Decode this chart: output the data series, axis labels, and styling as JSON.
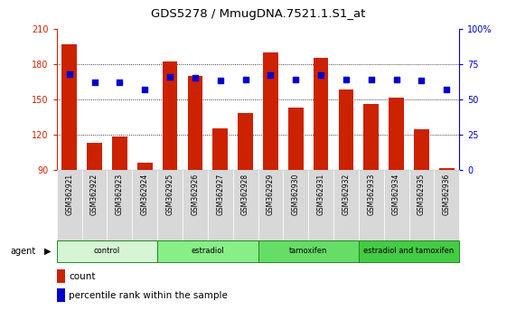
{
  "title": "GDS5278 / MmugDNA.7521.1.S1_at",
  "samples": [
    "GSM362921",
    "GSM362922",
    "GSM362923",
    "GSM362924",
    "GSM362925",
    "GSM362926",
    "GSM362927",
    "GSM362928",
    "GSM362929",
    "GSM362930",
    "GSM362931",
    "GSM362932",
    "GSM362933",
    "GSM362934",
    "GSM362935",
    "GSM362936"
  ],
  "counts": [
    197,
    113,
    118,
    96,
    182,
    170,
    125,
    138,
    190,
    143,
    185,
    158,
    146,
    151,
    124,
    91
  ],
  "percentile_ranks": [
    68,
    62,
    62,
    57,
    66,
    65,
    63,
    64,
    67,
    64,
    67,
    64,
    64,
    64,
    63,
    57
  ],
  "groups": [
    {
      "label": "control",
      "start": 0,
      "end": 4,
      "color": "#d5f5d5"
    },
    {
      "label": "estradiol",
      "start": 4,
      "end": 8,
      "color": "#88ee88"
    },
    {
      "label": "tamoxifen",
      "start": 8,
      "end": 12,
      "color": "#66dd66"
    },
    {
      "label": "estradiol and tamoxifen",
      "start": 12,
      "end": 16,
      "color": "#44cc44"
    }
  ],
  "bar_color": "#cc2200",
  "dot_color": "#0000cc",
  "ylim_left": [
    90,
    210
  ],
  "ylim_right": [
    0,
    100
  ],
  "yticks_left": [
    90,
    120,
    150,
    180,
    210
  ],
  "yticks_right": [
    0,
    25,
    50,
    75,
    100
  ],
  "background_color": "#ffffff",
  "plot_bg": "#ffffff",
  "agent_label": "agent",
  "xticklabel_bg": "#d8d8d8"
}
